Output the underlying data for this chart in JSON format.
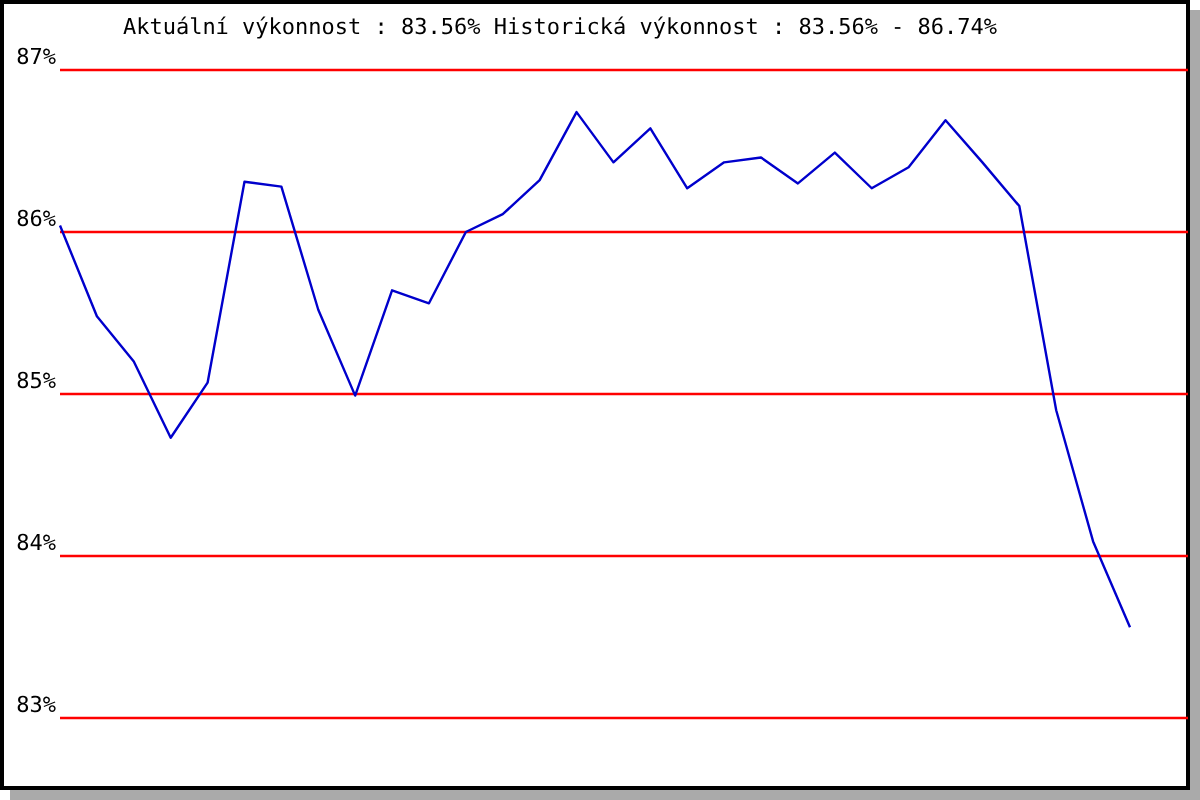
{
  "chart_data": {
    "type": "line",
    "title": "Aktuální výkonnost : 83.56%  Historická výkonnost : 83.56% - 86.74%",
    "categories": [
      null,
      null,
      null,
      null,
      null,
      null,
      null,
      null,
      null,
      null,
      null,
      null,
      null,
      null,
      null,
      null,
      null,
      null,
      null,
      null,
      null,
      null,
      null,
      null,
      null,
      null,
      null,
      null,
      null,
      null
    ],
    "series": [
      {
        "color": "#0000cc",
        "values": [
          86.04,
          85.48,
          85.2,
          84.73,
          85.07,
          86.31,
          86.28,
          85.52,
          84.99,
          85.64,
          85.56,
          86.0,
          86.11,
          86.32,
          86.74,
          86.43,
          86.64,
          86.27,
          86.43,
          86.46,
          86.3,
          86.49,
          86.27,
          86.4,
          86.69,
          86.43,
          86.16,
          84.9,
          84.09,
          83.56
        ]
      }
    ],
    "ylim": [
      83,
      87
    ],
    "yticks": [
      {
        "value": 83,
        "label": "83%"
      },
      {
        "value": 84,
        "label": "84%"
      },
      {
        "value": 85,
        "label": "85%"
      },
      {
        "value": 86,
        "label": "86%"
      },
      {
        "value": 87,
        "label": "87%"
      }
    ],
    "grid": "y",
    "tick_labels": "y",
    "marker": "none"
  }
}
